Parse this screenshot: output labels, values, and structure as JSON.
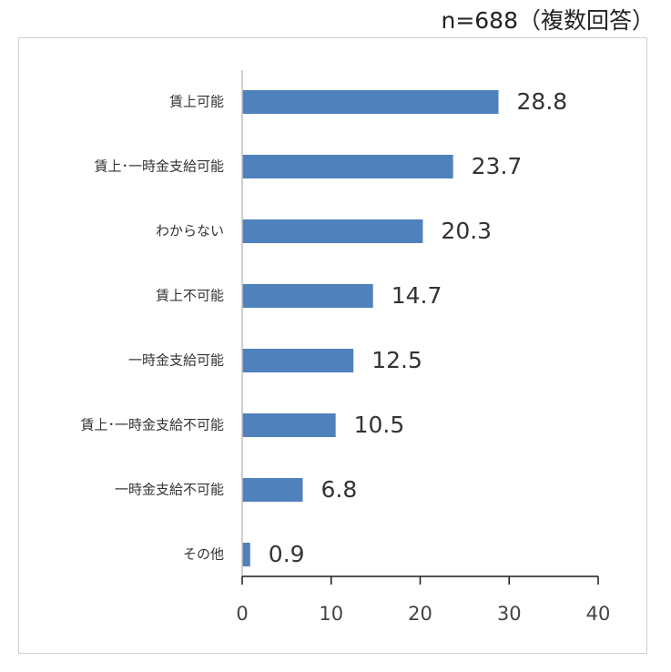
{
  "note": "n=688（複数回答）",
  "chart_data": {
    "type": "bar",
    "orientation": "horizontal",
    "categories": [
      "賃上可能",
      "賃上･一時金支給可能",
      "わからない",
      "賃上不可能",
      "一時金支給可能",
      "賃上･一時金支給不可能",
      "一時金支給不可能",
      "その他"
    ],
    "values": [
      28.8,
      23.7,
      20.3,
      14.7,
      12.5,
      10.5,
      6.8,
      0.9
    ],
    "value_labels": [
      "28.8",
      "23.7",
      "20.3",
      "14.7",
      "12.5",
      "10.5",
      "6.8",
      "0.9"
    ],
    "xlim": [
      0,
      40
    ],
    "xticks": [
      "0",
      "10",
      "20",
      "30",
      "40"
    ],
    "grid": false,
    "bar_color": "#4f81bd",
    "axis_color": "#1a1a1a"
  }
}
